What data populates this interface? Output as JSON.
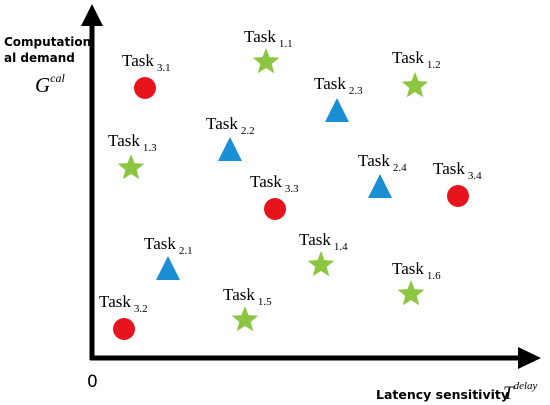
{
  "axes": {
    "y_label_line1": "Computation",
    "y_label_line2": "al demand",
    "y_symbol": "G",
    "y_symbol_sup": "cal",
    "x_label": "Latency sensitivity",
    "x_symbol": "T",
    "x_symbol_sup": "delay",
    "origin": "0"
  },
  "legend_colors": {
    "circle": "#e8141b",
    "triangle": "#1b8fd6",
    "star": "#8cc540"
  },
  "tasks": [
    {
      "word": "Task",
      "sub": "1.1",
      "shape": "star"
    },
    {
      "word": "Task",
      "sub": "1.2",
      "shape": "star"
    },
    {
      "word": "Task",
      "sub": "1.3",
      "shape": "star"
    },
    {
      "word": "Task",
      "sub": "1.4",
      "shape": "star"
    },
    {
      "word": "Task",
      "sub": "1.5",
      "shape": "star"
    },
    {
      "word": "Task",
      "sub": "1.6",
      "shape": "star"
    },
    {
      "word": "Task",
      "sub": "2.1",
      "shape": "triangle"
    },
    {
      "word": "Task",
      "sub": "2.2",
      "shape": "triangle"
    },
    {
      "word": "Task",
      "sub": "2.3",
      "shape": "triangle"
    },
    {
      "word": "Task",
      "sub": "2.4",
      "shape": "triangle"
    },
    {
      "word": "Task",
      "sub": "3.1",
      "shape": "circle"
    },
    {
      "word": "Task",
      "sub": "3.2",
      "shape": "circle"
    },
    {
      "word": "Task",
      "sub": "3.3",
      "shape": "circle"
    },
    {
      "word": "Task",
      "sub": "3.4",
      "shape": "circle"
    }
  ]
}
